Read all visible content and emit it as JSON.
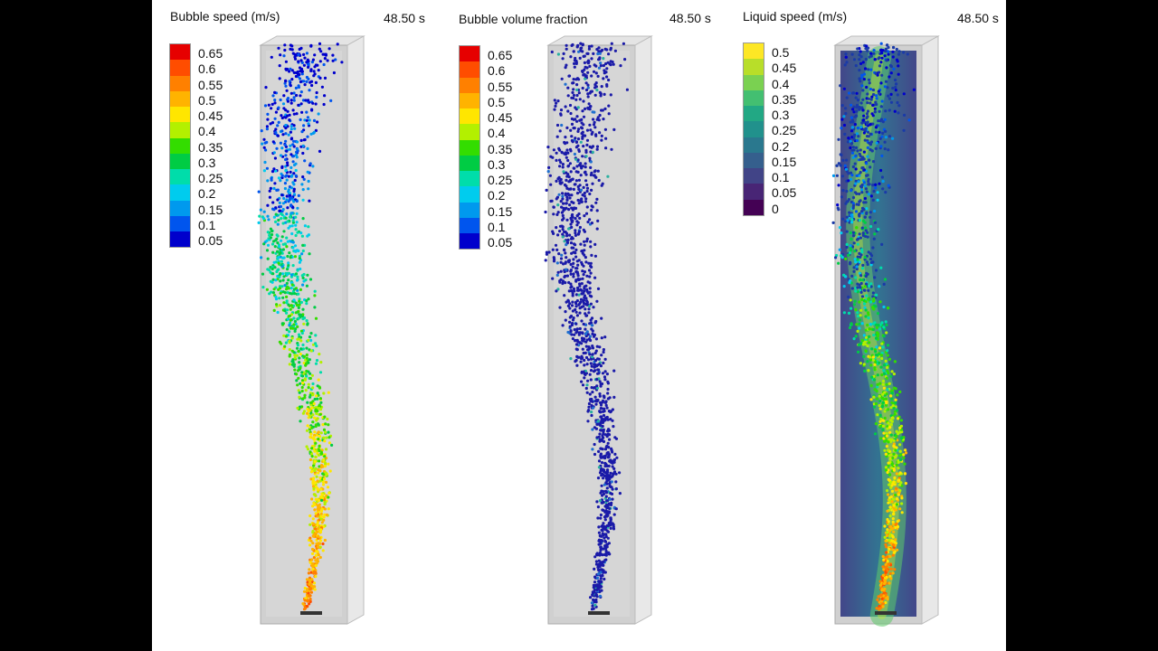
{
  "panels": [
    {
      "title": "Bubble speed (m/s)",
      "time": "48.50 s",
      "legend": {
        "labels": [
          "0.65",
          "0.6",
          "0.55",
          "0.5",
          "0.45",
          "0.4",
          "0.35",
          "0.3",
          "0.25",
          "0.2",
          "0.15",
          "0.1",
          "0.05"
        ],
        "colors": [
          "#e60000",
          "#ff4d00",
          "#ff8000",
          "#ffb300",
          "#ffe600",
          "#b3f000",
          "#33dd00",
          "#00cc44",
          "#00ddaa",
          "#00ccee",
          "#0099ee",
          "#0055ee",
          "#0000cc"
        ]
      }
    },
    {
      "title": "Bubble volume fraction",
      "time": "48.50 s",
      "legend": {
        "labels": [
          "0.65",
          "0.6",
          "0.55",
          "0.5",
          "0.45",
          "0.4",
          "0.35",
          "0.3",
          "0.25",
          "0.2",
          "0.15",
          "0.1",
          "0.05"
        ],
        "colors": [
          "#e60000",
          "#ff4d00",
          "#ff8000",
          "#ffb300",
          "#ffe600",
          "#b3f000",
          "#33dd00",
          "#00cc44",
          "#00ddaa",
          "#00ccee",
          "#0099ee",
          "#0055ee",
          "#0000cc"
        ]
      }
    },
    {
      "title": "Liquid speed (m/s)",
      "time": "48.50 s",
      "legend": {
        "labels": [
          "0.5",
          "0.45",
          "0.4",
          "0.35",
          "0.3",
          "0.25",
          "0.2",
          "0.15",
          "0.1",
          "0.05",
          "0"
        ],
        "colors": [
          "#fde725",
          "#b8de29",
          "#7ad151",
          "#43bf71",
          "#22a884",
          "#21918c",
          "#2a788e",
          "#355f8d",
          "#414487",
          "#482575",
          "#440154"
        ]
      }
    }
  ],
  "colors": {
    "background": "#000000",
    "panel": "#ffffff",
    "column": "#cccccc"
  }
}
